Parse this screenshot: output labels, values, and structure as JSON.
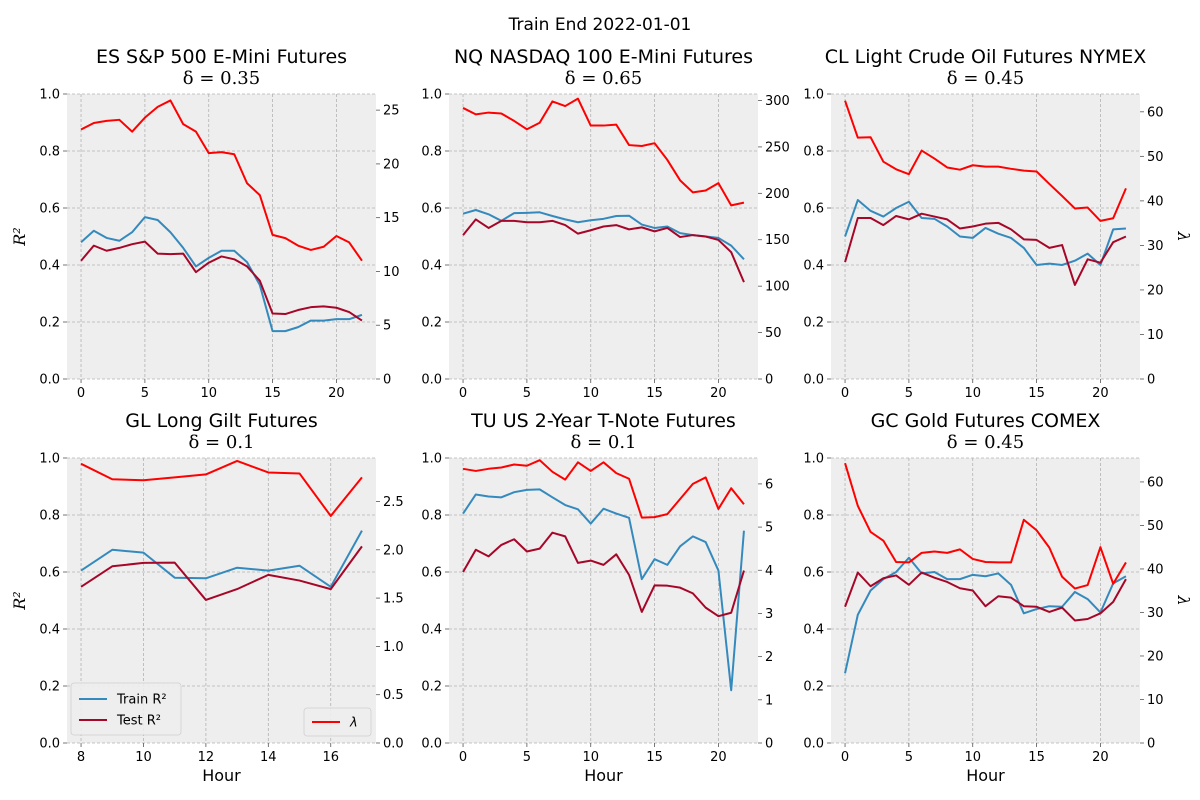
{
  "figure": {
    "suptitle": "Train End 2022-01-01",
    "colors": {
      "train": "#348ABD",
      "test": "#A60628",
      "lambda": "#FF0000",
      "axes_bg": "#EEEEEE",
      "grid": "#B2B2B2"
    }
  },
  "chart_data": [
    {
      "type": "line",
      "title": "ES S&P 500 E-Mini Futures",
      "subtitle": "δ = 0.35",
      "xlabel": "",
      "ylabel": "R²",
      "ylabel_right": "",
      "xlim": [
        -1.1,
        23.1
      ],
      "ylim": [
        0,
        1.0
      ],
      "y2lim": [
        0,
        26.5
      ],
      "xticks": [
        "0",
        "5",
        "10",
        "15",
        "20"
      ],
      "yticks": [
        "0.0",
        "0.2",
        "0.4",
        "0.6",
        "0.8",
        "1.0"
      ],
      "y2ticks": [
        "0",
        "5",
        "10",
        "15",
        "20",
        "25"
      ],
      "x": [
        0,
        1,
        2,
        3,
        4,
        5,
        6,
        7,
        8,
        9,
        10,
        11,
        12,
        13,
        14,
        15,
        16,
        17,
        18,
        19,
        20,
        21,
        22
      ],
      "series": [
        {
          "name": "Train R²",
          "axis": "left",
          "values": [
            0.48,
            0.52,
            0.495,
            0.485,
            0.515,
            0.568,
            0.558,
            0.515,
            0.46,
            0.395,
            0.425,
            0.45,
            0.45,
            0.41,
            0.33,
            0.168,
            0.168,
            0.182,
            0.205,
            0.205,
            0.21,
            0.21,
            0.225
          ]
        },
        {
          "name": "Test R²",
          "axis": "left",
          "values": [
            0.415,
            0.468,
            0.45,
            0.46,
            0.473,
            0.482,
            0.44,
            0.438,
            0.44,
            0.375,
            0.408,
            0.43,
            0.42,
            0.395,
            0.345,
            0.23,
            0.228,
            0.242,
            0.252,
            0.255,
            0.25,
            0.235,
            0.205
          ]
        },
        {
          "name": "λ",
          "axis": "right",
          "values": [
            23.2,
            23.8,
            24.0,
            24.1,
            23.0,
            24.3,
            25.3,
            25.9,
            23.7,
            23.0,
            21.0,
            21.1,
            20.9,
            18.2,
            17.1,
            13.4,
            13.1,
            12.4,
            12.0,
            12.3,
            13.3,
            12.7,
            11.0
          ]
        }
      ]
    },
    {
      "type": "line",
      "title": "NQ NASDAQ 100 E-Mini Futures",
      "subtitle": "δ = 0.65",
      "xlabel": "",
      "ylabel": "",
      "ylabel_right": "",
      "xlim": [
        -1.1,
        23.1
      ],
      "ylim": [
        0,
        1.0
      ],
      "y2lim": [
        0,
        307
      ],
      "xticks": [
        "0",
        "5",
        "10",
        "15",
        "20"
      ],
      "yticks": [
        "0.0",
        "0.2",
        "0.4",
        "0.6",
        "0.8",
        "1.0"
      ],
      "y2ticks": [
        "0",
        "50",
        "100",
        "150",
        "200",
        "250",
        "300"
      ],
      "x": [
        0,
        1,
        2,
        3,
        4,
        5,
        6,
        7,
        8,
        9,
        10,
        11,
        12,
        13,
        14,
        15,
        16,
        17,
        18,
        19,
        20,
        21,
        22
      ],
      "series": [
        {
          "name": "Train R²",
          "axis": "left",
          "values": [
            0.58,
            0.593,
            0.578,
            0.555,
            0.582,
            0.583,
            0.585,
            0.572,
            0.56,
            0.55,
            0.557,
            0.562,
            0.572,
            0.573,
            0.542,
            0.53,
            0.535,
            0.512,
            0.505,
            0.5,
            0.495,
            0.468,
            0.42
          ]
        },
        {
          "name": "Test R²",
          "axis": "left",
          "values": [
            0.505,
            0.56,
            0.53,
            0.555,
            0.555,
            0.55,
            0.55,
            0.555,
            0.54,
            0.51,
            0.522,
            0.535,
            0.54,
            0.525,
            0.532,
            0.518,
            0.53,
            0.498,
            0.505,
            0.5,
            0.488,
            0.445,
            0.34
          ]
        },
        {
          "name": "λ",
          "axis": "right",
          "values": [
            292,
            285,
            287,
            286,
            278,
            269,
            276,
            299,
            294,
            302,
            273,
            273,
            274,
            252,
            251,
            254,
            236,
            214,
            201,
            203,
            211,
            187,
            190
          ]
        }
      ]
    },
    {
      "type": "line",
      "title": "CL Light Crude Oil Futures NYMEX",
      "subtitle": "δ = 0.45",
      "xlabel": "",
      "ylabel": "",
      "ylabel_right": "λ",
      "xlim": [
        -1.1,
        23.1
      ],
      "ylim": [
        0,
        1.0
      ],
      "y2lim": [
        0,
        64
      ],
      "xticks": [
        "0",
        "5",
        "10",
        "15",
        "20"
      ],
      "yticks": [
        "0.0",
        "0.2",
        "0.4",
        "0.6",
        "0.8",
        "1.0"
      ],
      "y2ticks": [
        "0",
        "10",
        "20",
        "30",
        "40",
        "50",
        "60"
      ],
      "x": [
        0,
        1,
        2,
        3,
        4,
        5,
        6,
        7,
        8,
        9,
        10,
        11,
        12,
        13,
        14,
        15,
        16,
        17,
        18,
        19,
        20,
        21,
        22
      ],
      "series": [
        {
          "name": "Train R²",
          "axis": "left",
          "values": [
            0.5,
            0.628,
            0.59,
            0.57,
            0.6,
            0.622,
            0.565,
            0.562,
            0.535,
            0.5,
            0.495,
            0.53,
            0.51,
            0.495,
            0.46,
            0.4,
            0.405,
            0.4,
            0.415,
            0.44,
            0.4,
            0.525,
            0.528
          ]
        },
        {
          "name": "Test R²",
          "axis": "left",
          "values": [
            0.41,
            0.565,
            0.565,
            0.54,
            0.572,
            0.56,
            0.58,
            0.57,
            0.56,
            0.528,
            0.535,
            0.545,
            0.548,
            0.525,
            0.49,
            0.488,
            0.46,
            0.47,
            0.33,
            0.42,
            0.408,
            0.48,
            0.5
          ]
        },
        {
          "name": "λ",
          "axis": "right",
          "values": [
            62.5,
            54.2,
            54.3,
            48.8,
            47.1,
            46.0,
            51.3,
            49.5,
            47.5,
            47.0,
            48.0,
            47.7,
            47.7,
            47.2,
            46.8,
            46.6,
            43.8,
            41.1,
            38.3,
            38.5,
            35.5,
            36.1,
            42.8
          ]
        }
      ]
    },
    {
      "type": "line",
      "title": "GL Long Gilt Futures",
      "subtitle": "δ = 0.1",
      "xlabel": "Hour",
      "ylabel": "R²",
      "ylabel_right": "",
      "xlim": [
        7.55,
        17.45
      ],
      "ylim": [
        0,
        1.0
      ],
      "y2lim": [
        0,
        2.95
      ],
      "xticks": [
        "8",
        "10",
        "12",
        "14",
        "16"
      ],
      "yticks": [
        "0.0",
        "0.2",
        "0.4",
        "0.6",
        "0.8",
        "1.0"
      ],
      "y2ticks": [
        "0.0",
        "0.5",
        "1.0",
        "1.5",
        "2.0",
        "2.5"
      ],
      "x": [
        8,
        9,
        10,
        11,
        12,
        13,
        14,
        15,
        16,
        17
      ],
      "series": [
        {
          "name": "Train R²",
          "axis": "left",
          "values": [
            0.605,
            0.678,
            0.668,
            0.58,
            0.578,
            0.615,
            0.605,
            0.622,
            0.548,
            0.745
          ]
        },
        {
          "name": "Test R²",
          "axis": "left",
          "values": [
            0.548,
            0.62,
            0.632,
            0.633,
            0.502,
            0.54,
            0.59,
            0.57,
            0.54,
            0.69
          ]
        },
        {
          "name": "λ",
          "axis": "right",
          "values": [
            2.89,
            2.73,
            2.72,
            2.75,
            2.78,
            2.92,
            2.8,
            2.79,
            2.35,
            2.75
          ]
        }
      ]
    },
    {
      "type": "line",
      "title": "TU US 2-Year T-Note Futures",
      "subtitle": "δ = 0.1",
      "xlabel": "Hour",
      "ylabel": "",
      "ylabel_right": "",
      "xlim": [
        -1.1,
        23.1
      ],
      "ylim": [
        0,
        1.0
      ],
      "y2lim": [
        0,
        6.6
      ],
      "xticks": [
        "0",
        "5",
        "10",
        "15",
        "20"
      ],
      "yticks": [
        "0.0",
        "0.2",
        "0.4",
        "0.6",
        "0.8",
        "1.0"
      ],
      "y2ticks": [
        "0",
        "1",
        "2",
        "3",
        "4",
        "5",
        "6"
      ],
      "x": [
        0,
        1,
        2,
        3,
        4,
        5,
        6,
        7,
        8,
        9,
        10,
        11,
        12,
        13,
        14,
        15,
        16,
        17,
        18,
        19,
        20,
        21,
        22
      ],
      "series": [
        {
          "name": "Train R²",
          "axis": "left",
          "values": [
            0.805,
            0.872,
            0.865,
            0.862,
            0.88,
            0.888,
            0.89,
            0.862,
            0.835,
            0.82,
            0.77,
            0.822,
            0.805,
            0.79,
            0.575,
            0.645,
            0.625,
            0.69,
            0.725,
            0.705,
            0.605,
            0.185,
            0.745
          ]
        },
        {
          "name": "Test R²",
          "axis": "left",
          "values": [
            0.6,
            0.678,
            0.655,
            0.695,
            0.715,
            0.672,
            0.682,
            0.738,
            0.725,
            0.632,
            0.64,
            0.625,
            0.662,
            0.59,
            0.46,
            0.553,
            0.552,
            0.545,
            0.525,
            0.475,
            0.445,
            0.457,
            0.605
          ]
        },
        {
          "name": "λ",
          "axis": "right",
          "values": [
            6.35,
            6.3,
            6.35,
            6.38,
            6.45,
            6.42,
            6.55,
            6.28,
            6.1,
            6.5,
            6.3,
            6.5,
            6.25,
            6.12,
            5.22,
            5.23,
            5.3,
            5.65,
            6.0,
            6.15,
            5.42,
            5.9,
            5.53
          ]
        }
      ]
    },
    {
      "type": "line",
      "title": "GC Gold Futures COMEX",
      "subtitle": "δ = 0.45",
      "xlabel": "Hour",
      "ylabel": "",
      "ylabel_right": "λ",
      "xlim": [
        -1.1,
        23.1
      ],
      "ylim": [
        0,
        1.0
      ],
      "y2lim": [
        0,
        65.5
      ],
      "xticks": [
        "0",
        "5",
        "10",
        "15",
        "20"
      ],
      "yticks": [
        "0.0",
        "0.2",
        "0.4",
        "0.6",
        "0.8",
        "1.0"
      ],
      "y2ticks": [
        "0",
        "10",
        "20",
        "30",
        "40",
        "50",
        "60"
      ],
      "x": [
        0,
        1,
        2,
        3,
        4,
        5,
        6,
        7,
        8,
        9,
        10,
        11,
        12,
        13,
        14,
        15,
        16,
        17,
        18,
        19,
        20,
        21,
        22
      ],
      "series": [
        {
          "name": "Train R²",
          "axis": "left",
          "values": [
            0.245,
            0.45,
            0.535,
            0.575,
            0.6,
            0.65,
            0.595,
            0.6,
            0.575,
            0.575,
            0.59,
            0.585,
            0.595,
            0.555,
            0.455,
            0.47,
            0.48,
            0.478,
            0.53,
            0.505,
            0.458,
            0.56,
            0.585
          ]
        },
        {
          "name": "Test R²",
          "axis": "left",
          "values": [
            0.478,
            0.598,
            0.55,
            0.578,
            0.588,
            0.555,
            0.598,
            0.58,
            0.565,
            0.543,
            0.535,
            0.48,
            0.515,
            0.51,
            0.48,
            0.478,
            0.46,
            0.475,
            0.43,
            0.435,
            0.455,
            0.495,
            0.575
          ]
        },
        {
          "name": "λ",
          "axis": "right",
          "values": [
            64.3,
            54.5,
            48.5,
            46.5,
            41.6,
            41.5,
            43.7,
            44.0,
            43.7,
            44.5,
            42.3,
            41.6,
            41.5,
            41.5,
            51.3,
            48.9,
            44.9,
            38.2,
            35.5,
            36.3,
            45.0,
            36.6,
            41.5
          ]
        }
      ]
    }
  ],
  "legend": {
    "left_entries": [
      "Train R²",
      "Test R²"
    ],
    "right_entries": [
      "λ"
    ]
  }
}
